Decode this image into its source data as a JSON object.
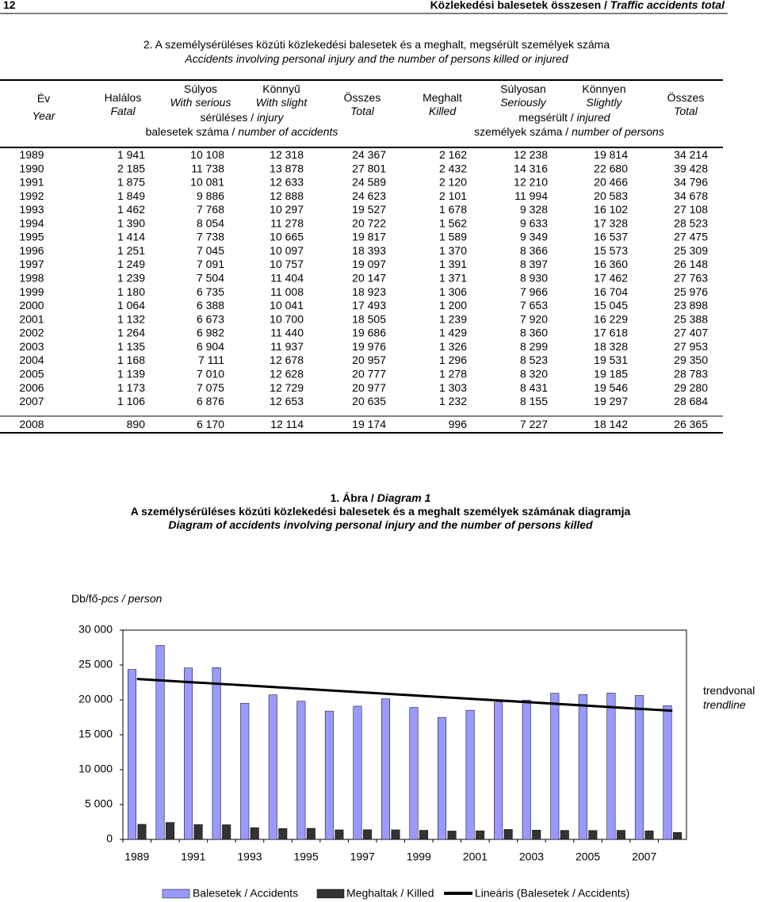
{
  "header": {
    "page": "12",
    "title_hu": "Közlekedési balesetek összesen / ",
    "title_en": "Traffic accidents total"
  },
  "table": {
    "title_hu": "2. A személysérüléses közúti közlekedési balesetek és a meghalt, megsérült személyek száma",
    "title_en": "Accidents involving personal injury and the number of persons killed or injured",
    "columns": [
      {
        "hu": "Év",
        "en": "Year"
      },
      {
        "hu": "Halálos",
        "en": "Fatal"
      },
      {
        "hu": "Súlyos",
        "en": "With serious"
      },
      {
        "hu": "Könnyű",
        "en": "With slight"
      },
      {
        "hu": "Összes",
        "en": "Total"
      },
      {
        "hu": "Meghalt",
        "en": "Killed"
      },
      {
        "hu": "Súlyosan",
        "en": "Seriously"
      },
      {
        "hu": "Könnyen",
        "en": "Slightly"
      },
      {
        "hu": "Összes",
        "en": "Total"
      }
    ],
    "groups": [
      {
        "hu": "sérüléses / ",
        "en": "injury"
      },
      {
        "hu": "balesetek száma / ",
        "en": "number of accidents"
      },
      {
        "hu": "megsérült / ",
        "en": "injured"
      },
      {
        "hu": "személyek száma / ",
        "en": "number of persons"
      }
    ],
    "rows": [
      [
        "1989",
        "1 941",
        "10 108",
        "12 318",
        "24 367",
        "2 162",
        "12 238",
        "19 814",
        "34 214"
      ],
      [
        "1990",
        "2 185",
        "11 738",
        "13 878",
        "27 801",
        "2 432",
        "14 316",
        "22 680",
        "39 428"
      ],
      [
        "1991",
        "1 875",
        "10 081",
        "12 633",
        "24 589",
        "2 120",
        "12 210",
        "20 466",
        "34 796"
      ],
      [
        "1992",
        "1 849",
        "9 886",
        "12 888",
        "24 623",
        "2 101",
        "11 994",
        "20 583",
        "34 678"
      ],
      [
        "1993",
        "1 462",
        "7 768",
        "10 297",
        "19 527",
        "1 678",
        "9 328",
        "16 102",
        "27 108"
      ],
      [
        "1994",
        "1 390",
        "8 054",
        "11 278",
        "20 722",
        "1 562",
        "9 633",
        "17 328",
        "28 523"
      ],
      [
        "1995",
        "1 414",
        "7 738",
        "10 665",
        "19 817",
        "1 589",
        "9 349",
        "16 537",
        "27 475"
      ],
      [
        "1996",
        "1 251",
        "7 045",
        "10 097",
        "18 393",
        "1 370",
        "8 366",
        "15 573",
        "25 309"
      ],
      [
        "1997",
        "1 249",
        "7 091",
        "10 757",
        "19 097",
        "1 391",
        "8 397",
        "16 360",
        "26 148"
      ],
      [
        "1998",
        "1 239",
        "7 504",
        "11 404",
        "20 147",
        "1 371",
        "8 930",
        "17 462",
        "27 763"
      ],
      [
        "1999",
        "1 180",
        "6 735",
        "11 008",
        "18 923",
        "1 306",
        "7 966",
        "16 704",
        "25 976"
      ],
      [
        "2000",
        "1 064",
        "6 388",
        "10 041",
        "17 493",
        "1 200",
        "7 653",
        "15 045",
        "23 898"
      ],
      [
        "2001",
        "1 132",
        "6 673",
        "10 700",
        "18 505",
        "1 239",
        "7 920",
        "16 229",
        "25 388"
      ],
      [
        "2002",
        "1 264",
        "6 982",
        "11 440",
        "19 686",
        "1 429",
        "8 360",
        "17 618",
        "27 407"
      ],
      [
        "2003",
        "1 135",
        "6 904",
        "11 937",
        "19 976",
        "1 326",
        "8 299",
        "18 328",
        "27 953"
      ],
      [
        "2004",
        "1 168",
        "7 111",
        "12 678",
        "20 957",
        "1 296",
        "8 523",
        "19 531",
        "29 350"
      ],
      [
        "2005",
        "1 139",
        "7 010",
        "12 628",
        "20 777",
        "1 278",
        "8 320",
        "19 185",
        "28 783"
      ],
      [
        "2006",
        "1 173",
        "7 075",
        "12 729",
        "20 977",
        "1 303",
        "8 431",
        "19 546",
        "29 280"
      ],
      [
        "2007",
        "1 106",
        "6 876",
        "12 653",
        "20 635",
        "1 232",
        "8 155",
        "19 297",
        "28 684"
      ],
      [
        "2008",
        "890",
        "6 170",
        "12 114",
        "19 174",
        "996",
        "7 227",
        "18 142",
        "26 365"
      ]
    ]
  },
  "figure": {
    "caption_hu": "1. Ábra / ",
    "caption_en": "Diagram 1",
    "title_hu": "A személysérüléses közúti közlekedési balesetek és a meghalt személyek számának diagramja",
    "title_en": "Diagram of accidents involving personal injury and the number of persons killed"
  },
  "chart_data": {
    "type": "bar",
    "ylabel_hu": "Db/fő-",
    "ylabel_en": "pcs / person",
    "trend_hu": "trendvonal",
    "trend_en": "trendline",
    "categories": [
      "1989",
      null,
      "1991",
      null,
      "1993",
      null,
      "1995",
      null,
      "1997",
      null,
      "1999",
      null,
      "2001",
      null,
      "2003",
      null,
      "2005",
      null,
      "2007",
      null
    ],
    "series": [
      {
        "name": "Balesetek / Accidents",
        "color": "#9999ff",
        "values": [
          24367,
          27801,
          24589,
          24623,
          19527,
          20722,
          19817,
          18393,
          19097,
          20147,
          18923,
          17493,
          18505,
          19686,
          19976,
          20957,
          20777,
          20977,
          20635,
          19174
        ]
      },
      {
        "name": "Meghaltak / Killed",
        "color": "#333333",
        "values": [
          2162,
          2432,
          2120,
          2101,
          1678,
          1562,
          1589,
          1370,
          1391,
          1371,
          1306,
          1200,
          1239,
          1429,
          1326,
          1296,
          1278,
          1303,
          1232,
          996
        ]
      },
      {
        "name": "Lineáris (Balesetek / Accidents)",
        "color": "#000000",
        "type": "line",
        "values": [
          23000,
          22760,
          22520,
          22280,
          22040,
          21800,
          21560,
          21320,
          21080,
          20840,
          20600,
          20360,
          20120,
          19880,
          19640,
          19400,
          19160,
          18920,
          18680,
          18440
        ]
      }
    ],
    "ylim": [
      0,
      30000
    ],
    "yticks": [
      0,
      {
        "value": 5000,
        "label": "5 000"
      },
      {
        "value": 10000,
        "label": "10 000"
      },
      {
        "value": 15000,
        "label": "15 000"
      },
      {
        "value": 20000,
        "label": "20 000"
      },
      {
        "value": 25000,
        "label": "25 000"
      },
      {
        "value": 30000,
        "label": "30 000"
      }
    ]
  }
}
